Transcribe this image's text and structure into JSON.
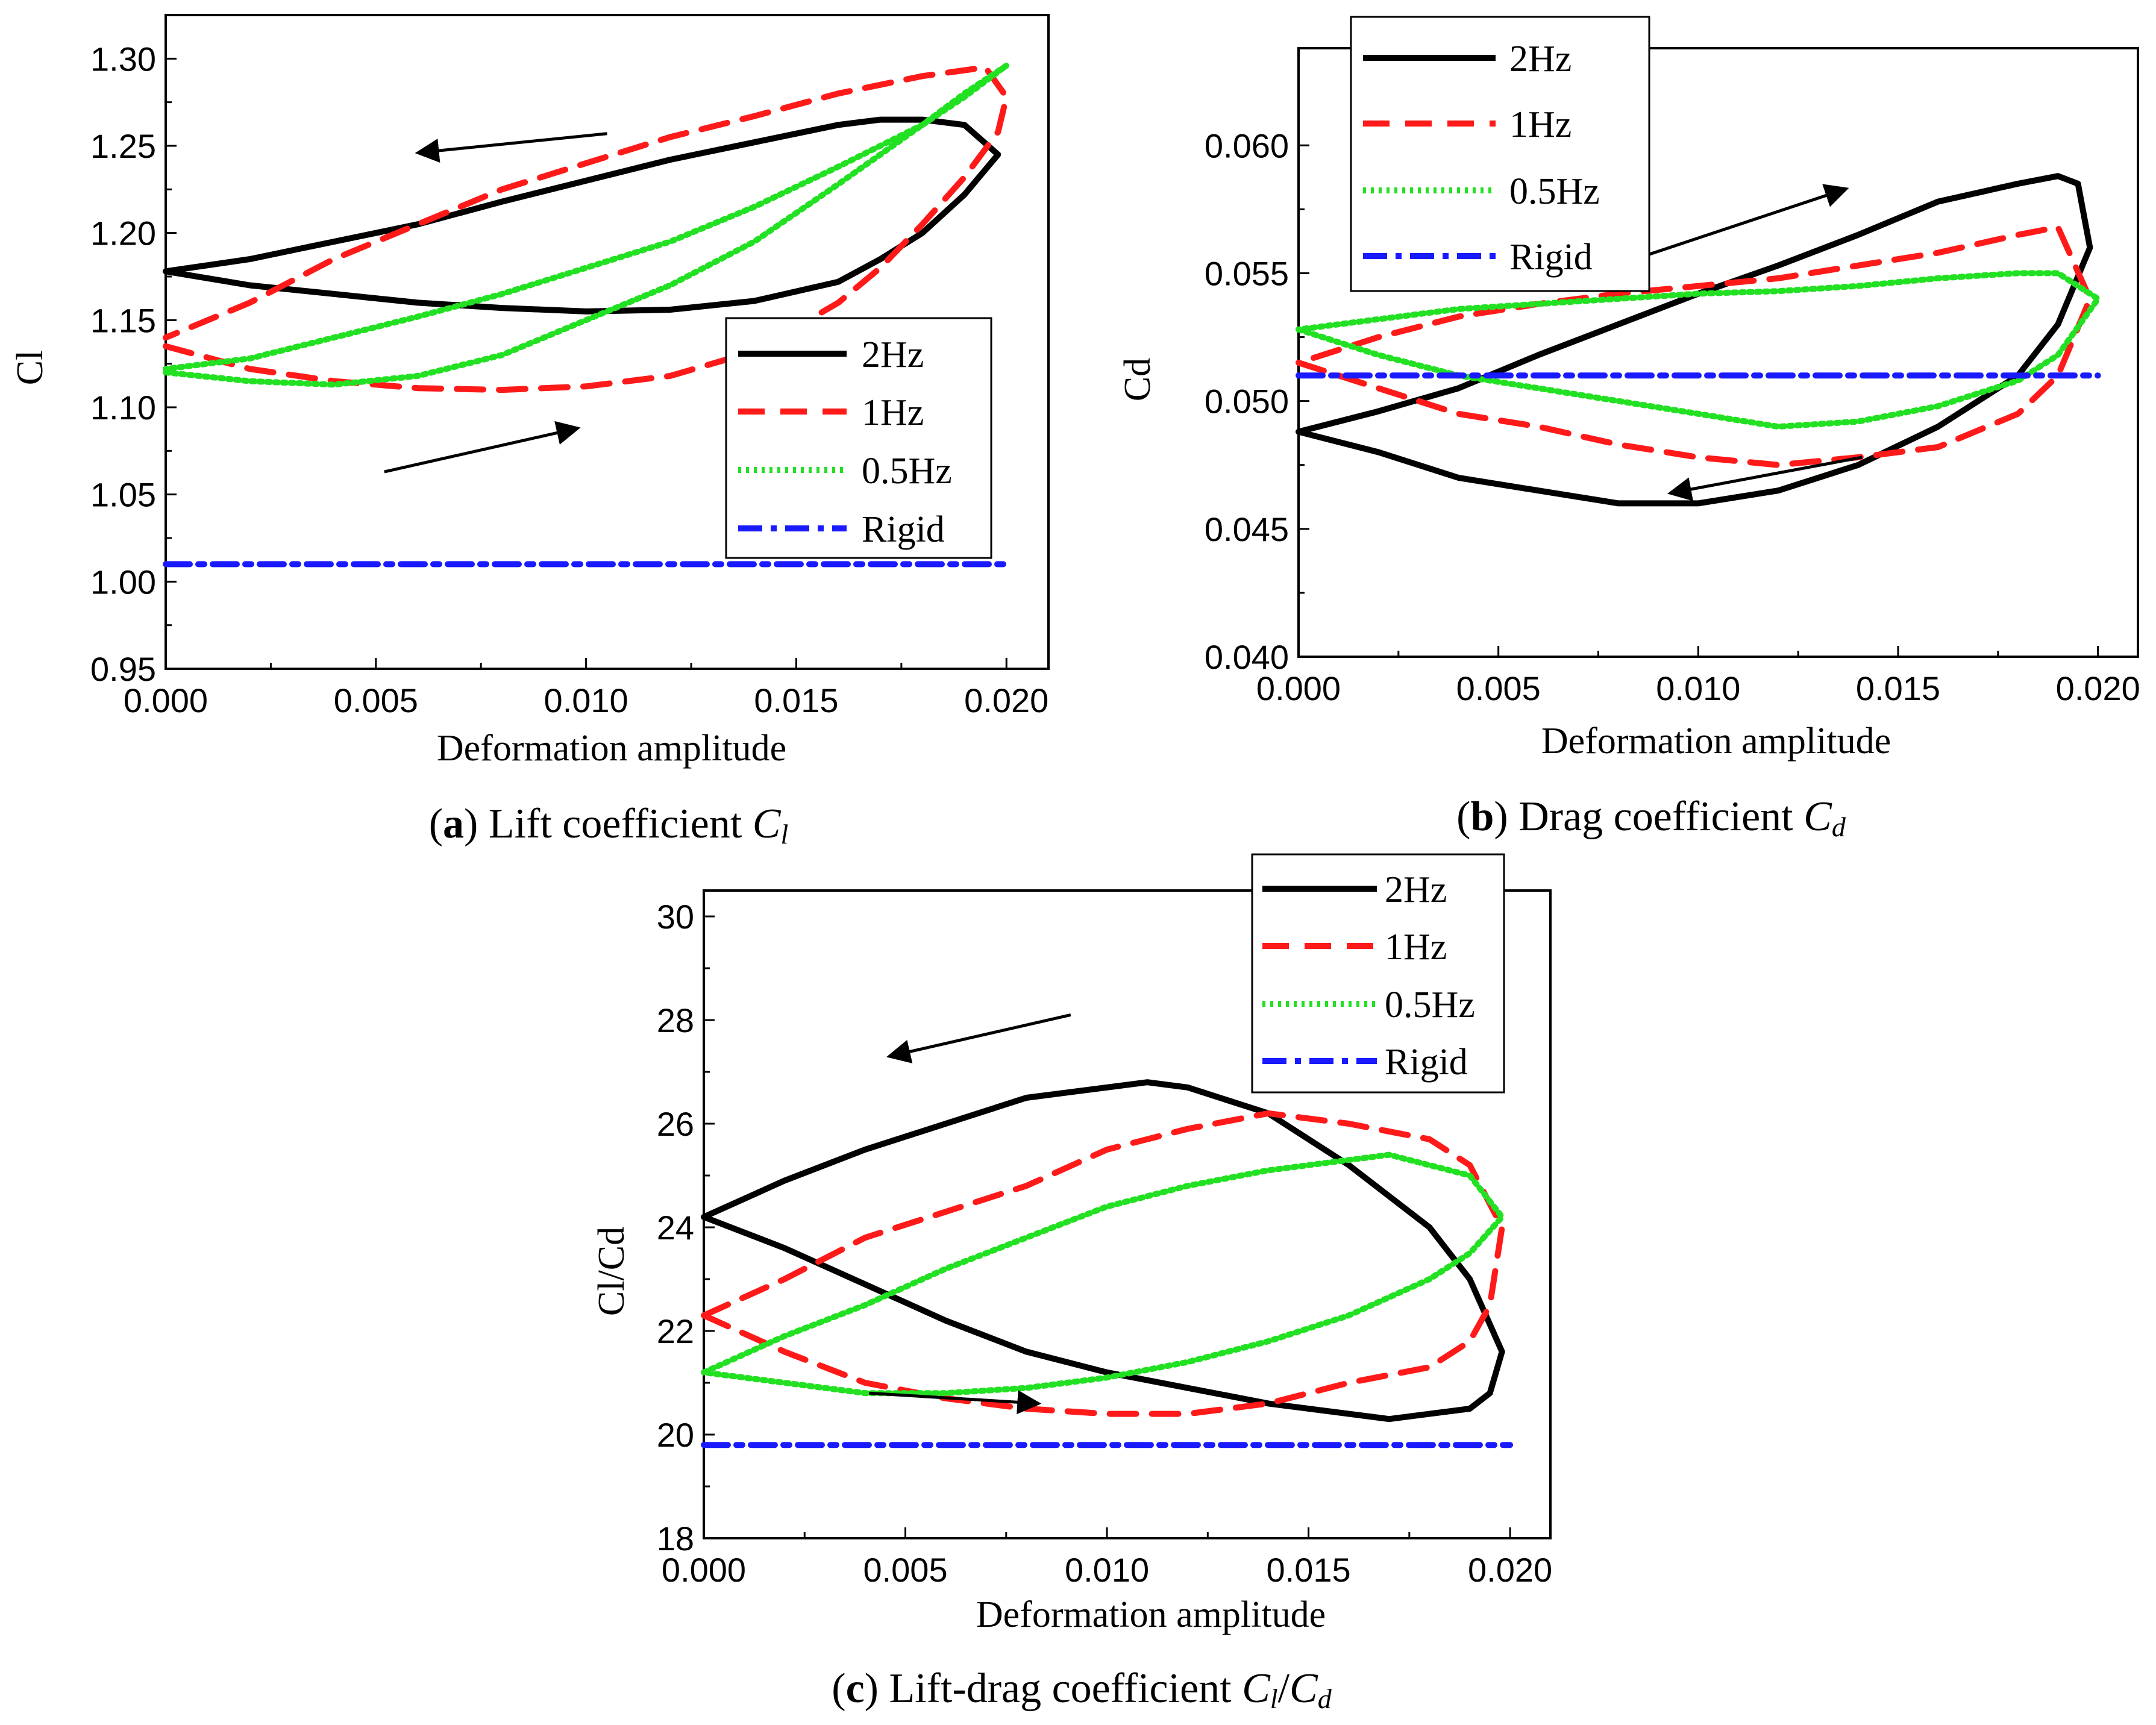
{
  "colors": {
    "2Hz": "#000000",
    "1Hz": "#ff1a1a",
    "0.5Hz": "#22e022",
    "Rigid": "#1a1aff"
  },
  "chart_data": [
    {
      "type": "line",
      "panel": "a",
      "caption": {
        "label": "a",
        "text": "Lift coefficient",
        "symbol": "C",
        "sub": "l"
      },
      "xlabel": "Deformation amplitude",
      "ylabel": "Cl",
      "xlim": [
        0,
        0.021
      ],
      "ylim": [
        0.95,
        1.325
      ],
      "xticks": [
        "0.000",
        "0.005",
        "0.010",
        "0.015",
        "0.020"
      ],
      "yticks": [
        "0.95",
        "1.00",
        "1.05",
        "1.10",
        "1.15",
        "1.20",
        "1.25",
        "1.30"
      ],
      "legend": [
        "2Hz",
        "1Hz",
        "0.5Hz",
        "Rigid"
      ],
      "legend_position": "lower-right",
      "series": [
        {
          "name": "2Hz",
          "x": [
            0,
            0.002,
            0.004,
            0.006,
            0.008,
            0.01,
            0.012,
            0.014,
            0.016,
            0.017,
            0.018,
            0.019,
            0.0198,
            0.019,
            0.018,
            0.017,
            0.016,
            0.014,
            0.012,
            0.01,
            0.008,
            0.006,
            0.004,
            0.002,
            0
          ],
          "y": [
            1.178,
            1.17,
            1.165,
            1.16,
            1.157,
            1.155,
            1.156,
            1.161,
            1.172,
            1.185,
            1.2,
            1.222,
            1.245,
            1.262,
            1.265,
            1.265,
            1.262,
            1.252,
            1.242,
            1.23,
            1.218,
            1.205,
            1.195,
            1.185,
            1.178
          ]
        },
        {
          "name": "1Hz",
          "x": [
            0,
            0.002,
            0.004,
            0.006,
            0.008,
            0.01,
            0.012,
            0.014,
            0.016,
            0.017,
            0.018,
            0.019,
            0.0198,
            0.02,
            0.0195,
            0.018,
            0.016,
            0.014,
            0.012,
            0.01,
            0.008,
            0.006,
            0.004,
            0.002,
            0
          ],
          "y": [
            1.135,
            1.122,
            1.115,
            1.111,
            1.11,
            1.112,
            1.118,
            1.132,
            1.16,
            1.18,
            1.205,
            1.232,
            1.258,
            1.278,
            1.295,
            1.29,
            1.28,
            1.267,
            1.255,
            1.24,
            1.225,
            1.205,
            1.185,
            1.16,
            1.14
          ]
        },
        {
          "name": "0.5Hz",
          "x": [
            0,
            0.002,
            0.004,
            0.006,
            0.008,
            0.01,
            0.012,
            0.014,
            0.016,
            0.017,
            0.018,
            0.019,
            0.02,
            0.019,
            0.018,
            0.016,
            0.014,
            0.012,
            0.01,
            0.008,
            0.006,
            0.004,
            0.002,
            0
          ],
          "y": [
            1.12,
            1.115,
            1.113,
            1.118,
            1.13,
            1.15,
            1.17,
            1.195,
            1.228,
            1.245,
            1.262,
            1.278,
            1.296,
            1.28,
            1.262,
            1.238,
            1.215,
            1.195,
            1.18,
            1.165,
            1.152,
            1.14,
            1.128,
            1.122
          ]
        },
        {
          "name": "Rigid",
          "x": [
            0,
            0.02
          ],
          "y": [
            1.01,
            1.01
          ]
        }
      ],
      "annotations": [
        {
          "type": "arrow",
          "from": [
            0.0105,
            1.257
          ],
          "to": [
            0.006,
            1.246
          ]
        },
        {
          "type": "arrow",
          "from": [
            0.0052,
            1.063
          ],
          "to": [
            0.0098,
            1.088
          ]
        }
      ]
    },
    {
      "type": "line",
      "panel": "b",
      "caption": {
        "label": "b",
        "text": "Drag coefficient",
        "symbol": "C",
        "sub": "d"
      },
      "xlabel": "Deformation amplitude",
      "ylabel": "Cd",
      "xlim": [
        0,
        0.021
      ],
      "ylim": [
        0.04,
        0.0638
      ],
      "xticks": [
        "0.000",
        "0.005",
        "0.010",
        "0.015",
        "0.020"
      ],
      "yticks": [
        "0.040",
        "0.045",
        "0.050",
        "0.055",
        "0.060"
      ],
      "legend": [
        "2Hz",
        "1Hz",
        "0.5Hz",
        "Rigid"
      ],
      "legend_position": "top-left",
      "series": [
        {
          "name": "2Hz",
          "x": [
            0,
            0.002,
            0.004,
            0.006,
            0.008,
            0.01,
            0.012,
            0.014,
            0.016,
            0.018,
            0.019,
            0.0198,
            0.0195,
            0.019,
            0.018,
            0.016,
            0.014,
            0.012,
            0.01,
            0.008,
            0.006,
            0.004,
            0.002,
            0
          ],
          "y": [
            0.0488,
            0.048,
            0.047,
            0.0465,
            0.046,
            0.046,
            0.0465,
            0.0475,
            0.049,
            0.051,
            0.053,
            0.056,
            0.0585,
            0.0588,
            0.0585,
            0.0578,
            0.0565,
            0.0553,
            0.0542,
            0.053,
            0.0518,
            0.0505,
            0.0496,
            0.0488
          ]
        },
        {
          "name": "1Hz",
          "x": [
            0,
            0.002,
            0.004,
            0.006,
            0.008,
            0.01,
            0.012,
            0.014,
            0.016,
            0.018,
            0.019,
            0.0198,
            0.019,
            0.018,
            0.016,
            0.014,
            0.012,
            0.01,
            0.008,
            0.006,
            0.004,
            0.002,
            0
          ],
          "y": [
            0.0515,
            0.0505,
            0.0495,
            0.049,
            0.0483,
            0.0478,
            0.0475,
            0.0478,
            0.0482,
            0.0495,
            0.051,
            0.054,
            0.0568,
            0.0565,
            0.0558,
            0.0553,
            0.0548,
            0.0545,
            0.0542,
            0.0538,
            0.0533,
            0.0525,
            0.0515
          ]
        },
        {
          "name": "0.5Hz",
          "x": [
            0,
            0.002,
            0.004,
            0.006,
            0.008,
            0.01,
            0.012,
            0.014,
            0.016,
            0.018,
            0.019,
            0.02,
            0.019,
            0.018,
            0.016,
            0.014,
            0.012,
            0.01,
            0.008,
            0.006,
            0.004,
            0.002,
            0
          ],
          "y": [
            0.0528,
            0.0518,
            0.051,
            0.0505,
            0.05,
            0.0495,
            0.049,
            0.0492,
            0.0498,
            0.0508,
            0.0518,
            0.054,
            0.055,
            0.055,
            0.0548,
            0.0545,
            0.0543,
            0.0542,
            0.054,
            0.0538,
            0.0536,
            0.0532,
            0.0528
          ]
        },
        {
          "name": "Rigid",
          "x": [
            0,
            0.02
          ],
          "y": [
            0.051,
            0.051
          ]
        }
      ],
      "annotations": [
        {
          "type": "arrow",
          "from": [
            0.0087,
            0.0557
          ],
          "to": [
            0.0137,
            0.0583
          ]
        },
        {
          "type": "arrow",
          "from": [
            0.0141,
            0.0478
          ],
          "to": [
            0.0093,
            0.0464
          ]
        }
      ]
    },
    {
      "type": "line",
      "panel": "c",
      "caption": {
        "label": "c",
        "text": "Lift-drag coefficient",
        "symbol": "C",
        "sub": "l",
        "symbol2": "C",
        "sub2": "d"
      },
      "xlabel": "Deformation amplitude",
      "ylabel": "Cl/Cd",
      "xlim": [
        0,
        0.021
      ],
      "ylim": [
        18,
        30.5
      ],
      "xticks": [
        "0.000",
        "0.005",
        "0.010",
        "0.015",
        "0.020"
      ],
      "yticks": [
        "18",
        "20",
        "22",
        "24",
        "26",
        "28",
        "30"
      ],
      "legend": [
        "2Hz",
        "1Hz",
        "0.5Hz",
        "Rigid"
      ],
      "legend_position": "top-right",
      "series": [
        {
          "name": "2Hz",
          "x": [
            0,
            0.002,
            0.004,
            0.006,
            0.008,
            0.01,
            0.011,
            0.012,
            0.014,
            0.016,
            0.018,
            0.019,
            0.0198,
            0.0195,
            0.019,
            0.018,
            0.017,
            0.016,
            0.014,
            0.012,
            0.01,
            0.008,
            0.006,
            0.004,
            0.002,
            0
          ],
          "y": [
            24.2,
            24.9,
            25.5,
            26.0,
            26.5,
            26.7,
            26.8,
            26.7,
            26.2,
            25.2,
            24.0,
            23.0,
            21.6,
            20.8,
            20.5,
            20.4,
            20.3,
            20.4,
            20.6,
            20.9,
            21.2,
            21.6,
            22.2,
            22.9,
            23.6,
            24.2
          ]
        },
        {
          "name": "1Hz",
          "x": [
            0,
            0.002,
            0.004,
            0.006,
            0.008,
            0.01,
            0.012,
            0.014,
            0.016,
            0.018,
            0.019,
            0.0198,
            0.0195,
            0.019,
            0.018,
            0.016,
            0.014,
            0.012,
            0.01,
            0.008,
            0.006,
            0.004,
            0.002,
            0
          ],
          "y": [
            22.3,
            23.0,
            23.8,
            24.3,
            24.8,
            25.5,
            25.9,
            26.2,
            26.0,
            25.7,
            25.2,
            24.0,
            22.5,
            21.8,
            21.3,
            21.0,
            20.6,
            20.4,
            20.4,
            20.5,
            20.7,
            21.0,
            21.6,
            22.3
          ]
        },
        {
          "name": "0.5Hz",
          "x": [
            0,
            0.002,
            0.004,
            0.006,
            0.008,
            0.01,
            0.012,
            0.014,
            0.016,
            0.017,
            0.018,
            0.019,
            0.0198,
            0.019,
            0.018,
            0.016,
            0.014,
            0.012,
            0.01,
            0.008,
            0.006,
            0.004,
            0.002,
            0
          ],
          "y": [
            21.2,
            21.9,
            22.5,
            23.2,
            23.8,
            24.4,
            24.8,
            25.1,
            25.3,
            25.4,
            25.2,
            25.0,
            24.2,
            23.5,
            23.0,
            22.3,
            21.8,
            21.4,
            21.1,
            20.9,
            20.8,
            20.8,
            21.0,
            21.2
          ]
        },
        {
          "name": "Rigid",
          "x": [
            0,
            0.02
          ],
          "y": [
            19.8,
            19.8
          ]
        }
      ],
      "annotations": [
        {
          "type": "arrow",
          "from": [
            0.0091,
            28.1
          ],
          "to": [
            0.0046,
            27.3
          ]
        },
        {
          "type": "arrow",
          "from": [
            0.0041,
            20.8
          ],
          "to": [
            0.0083,
            20.6
          ]
        }
      ]
    }
  ]
}
